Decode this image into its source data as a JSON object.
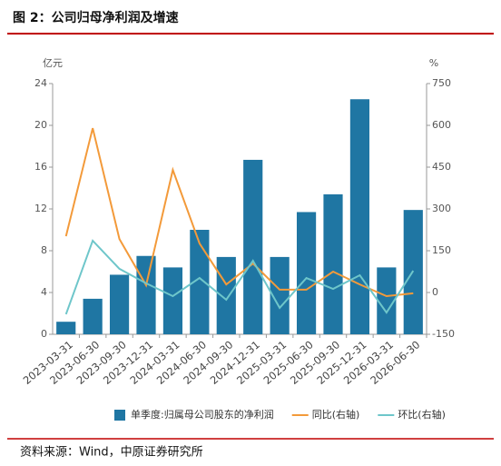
{
  "title": "图 2：公司归母净利润及增速",
  "source": "资料来源：Wind，中原证券研究所",
  "chart_data": {
    "type": "bar-line",
    "y_unit": "亿元",
    "y2_unit": "%",
    "categories": [
      "2023-03-31",
      "2023-06-30",
      "2023-09-30",
      "2023-12-31",
      "2024-03-31",
      "2024-06-30",
      "2024-09-30",
      "2024-12-31",
      "2025-03-31",
      "2025-06-30",
      "2025-09-30",
      "2025-12-31",
      "2026-03-31",
      "2026-06-30"
    ],
    "series": [
      {
        "name": "单季度:归属母公司股东的净利润",
        "type": "bar",
        "color": "#1f76a3",
        "values": [
          1.2,
          3.4,
          5.7,
          7.5,
          6.4,
          10.0,
          7.4,
          16.7,
          7.4,
          11.7,
          13.4,
          22.5,
          6.4,
          11.9
        ]
      },
      {
        "name": "同比(右轴)",
        "type": "line",
        "axis": "y2",
        "color": "#f39a3a",
        "values": [
          202,
          590,
          192,
          26,
          440,
          176,
          29,
          104,
          10,
          10,
          75,
          29,
          -13,
          -3
        ]
      },
      {
        "name": "环比(右轴)",
        "type": "line",
        "axis": "y2",
        "color": "#6ec6ca",
        "values": [
          -78,
          186,
          85,
          33,
          -13,
          52,
          -26,
          114,
          -55,
          52,
          13,
          62,
          -72,
          78
        ]
      }
    ],
    "ylim": [
      0,
      24
    ],
    "yticks": [
      0,
      4,
      8,
      12,
      16,
      20,
      24
    ],
    "y2lim": [
      -150,
      750
    ],
    "y2ticks": [
      -150,
      0,
      150,
      300,
      450,
      600,
      750
    ]
  }
}
